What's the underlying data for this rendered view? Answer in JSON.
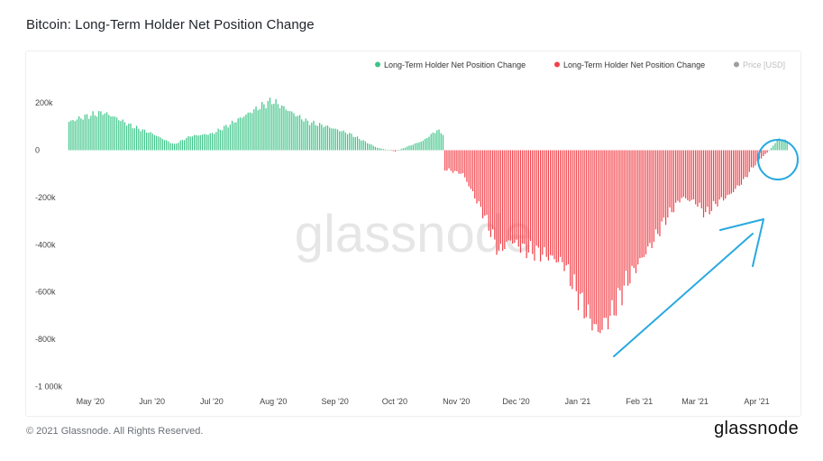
{
  "header": {
    "title": "Bitcoin: Long-Term Holder Net Position Change"
  },
  "footer": {
    "copyright": "© 2021 Glassnode. All Rights Reserved.",
    "logo_text": "glassnode"
  },
  "watermark": "glassnode",
  "colors": {
    "positive": "#3cc488",
    "negative": "#f0424a",
    "price": "#9e9e9e",
    "annotation": "#29a9e0"
  },
  "chart_data": {
    "type": "bar",
    "title": "Bitcoin: Long-Term Holder Net Position Change",
    "xlabel": "",
    "ylabel": "",
    "ylim": [
      -1000000,
      250000
    ],
    "y_ticks": [
      {
        "value": 200000,
        "label": "200k"
      },
      {
        "value": 0,
        "label": "0"
      },
      {
        "value": -200000,
        "label": "-200k"
      },
      {
        "value": -400000,
        "label": "-400k"
      },
      {
        "value": -600000,
        "label": "-600k"
      },
      {
        "value": -800000,
        "label": "-800k"
      },
      {
        "value": -1000000,
        "label": "-1 000k"
      }
    ],
    "x_range": [
      "2020-04-20",
      "2021-04-18"
    ],
    "x_ticks": [
      {
        "date": "2020-05-01",
        "label": "May '20"
      },
      {
        "date": "2020-06-01",
        "label": "Jun '20"
      },
      {
        "date": "2020-07-01",
        "label": "Jul '20"
      },
      {
        "date": "2020-08-01",
        "label": "Aug '20"
      },
      {
        "date": "2020-09-01",
        "label": "Sep '20"
      },
      {
        "date": "2020-10-01",
        "label": "Oct '20"
      },
      {
        "date": "2020-11-01",
        "label": "Nov '20"
      },
      {
        "date": "2020-12-01",
        "label": "Dec '20"
      },
      {
        "date": "2021-01-01",
        "label": "Jan '21"
      },
      {
        "date": "2021-02-01",
        "label": "Feb '21"
      },
      {
        "date": "2021-03-01",
        "label": "Mar '21"
      },
      {
        "date": "2021-04-01",
        "label": "Apr '21"
      }
    ],
    "legend": {
      "placement": "top-right",
      "entries": [
        {
          "label": "Long-Term Holder Net Position Change",
          "color": "#3cc488"
        },
        {
          "label": "Long-Term Holder Net Position Change",
          "color": "#f0424a"
        },
        {
          "label": "Price [USD]",
          "color": "#9e9e9e",
          "muted": true
        }
      ]
    },
    "grid": false,
    "series": [
      {
        "name": "Long-Term Holder Net Position Change",
        "key_points": [
          {
            "date": "2020-04-20",
            "value": 120000
          },
          {
            "date": "2020-04-27",
            "value": 140000
          },
          {
            "date": "2020-05-07",
            "value": 160000
          },
          {
            "date": "2020-05-13",
            "value": 140000
          },
          {
            "date": "2020-05-22",
            "value": 100000
          },
          {
            "date": "2020-06-01",
            "value": 70000
          },
          {
            "date": "2020-06-08",
            "value": 40000
          },
          {
            "date": "2020-06-12",
            "value": 25000
          },
          {
            "date": "2020-06-20",
            "value": 60000
          },
          {
            "date": "2020-07-01",
            "value": 70000
          },
          {
            "date": "2020-07-10",
            "value": 110000
          },
          {
            "date": "2020-07-22",
            "value": 170000
          },
          {
            "date": "2020-07-31",
            "value": 210000
          },
          {
            "date": "2020-08-06",
            "value": 180000
          },
          {
            "date": "2020-08-18",
            "value": 120000
          },
          {
            "date": "2020-08-28",
            "value": 100000
          },
          {
            "date": "2020-09-08",
            "value": 70000
          },
          {
            "date": "2020-09-15",
            "value": 40000
          },
          {
            "date": "2020-09-22",
            "value": 10000
          },
          {
            "date": "2020-10-01",
            "value": -5000
          },
          {
            "date": "2020-10-07",
            "value": 15000
          },
          {
            "date": "2020-10-15",
            "value": 40000
          },
          {
            "date": "2020-10-22",
            "value": 85000
          },
          {
            "date": "2020-10-25",
            "value": 70000
          },
          {
            "date": "2020-10-26",
            "value": -80000
          },
          {
            "date": "2020-11-04",
            "value": -100000
          },
          {
            "date": "2020-11-15",
            "value": -280000
          },
          {
            "date": "2020-11-22",
            "value": -430000
          },
          {
            "date": "2020-11-28",
            "value": -380000
          },
          {
            "date": "2020-12-05",
            "value": -420000
          },
          {
            "date": "2020-12-15",
            "value": -440000
          },
          {
            "date": "2020-12-25",
            "value": -480000
          },
          {
            "date": "2020-12-31",
            "value": -600000
          },
          {
            "date": "2021-01-06",
            "value": -700000
          },
          {
            "date": "2021-01-11",
            "value": -770000
          },
          {
            "date": "2021-01-18",
            "value": -690000
          },
          {
            "date": "2021-01-25",
            "value": -560000
          },
          {
            "date": "2021-02-01",
            "value": -470000
          },
          {
            "date": "2021-02-08",
            "value": -380000
          },
          {
            "date": "2021-02-14",
            "value": -290000
          },
          {
            "date": "2021-02-22",
            "value": -200000
          },
          {
            "date": "2021-03-01",
            "value": -220000
          },
          {
            "date": "2021-03-06",
            "value": -270000
          },
          {
            "date": "2021-03-12",
            "value": -220000
          },
          {
            "date": "2021-03-18",
            "value": -190000
          },
          {
            "date": "2021-03-25",
            "value": -130000
          },
          {
            "date": "2021-03-29",
            "value": -80000
          },
          {
            "date": "2021-04-02",
            "value": -40000
          },
          {
            "date": "2021-04-06",
            "value": -10000
          },
          {
            "date": "2021-04-09",
            "value": 20000
          },
          {
            "date": "2021-04-12",
            "value": 50000
          },
          {
            "date": "2021-04-16",
            "value": 40000
          }
        ]
      }
    ]
  }
}
